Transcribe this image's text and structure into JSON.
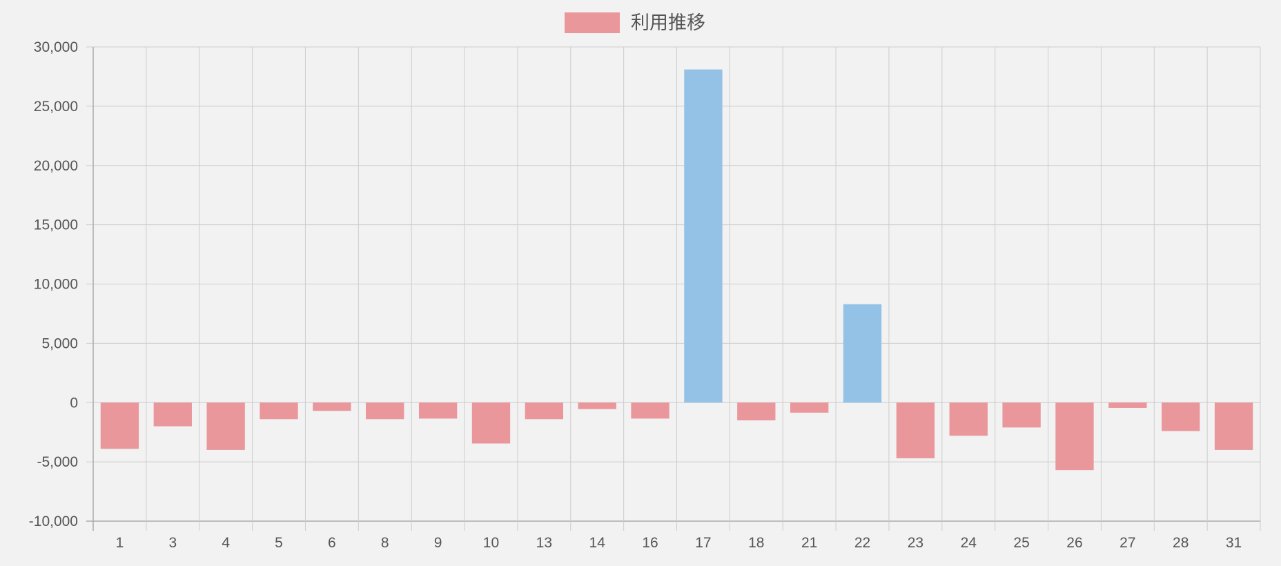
{
  "chart_data": {
    "type": "bar",
    "categories": [
      "1",
      "3",
      "4",
      "5",
      "6",
      "8",
      "9",
      "10",
      "13",
      "14",
      "16",
      "17",
      "18",
      "21",
      "22",
      "23",
      "24",
      "25",
      "26",
      "27",
      "28",
      "31"
    ],
    "series": [
      {
        "name": "利用推移",
        "values": [
          -3900,
          -2000,
          -4000,
          -1400,
          -700,
          -1400,
          -1350,
          -3450,
          -1400,
          -550,
          -1350,
          28100,
          -1500,
          -850,
          8300,
          -4700,
          -2800,
          -2100,
          -5700,
          -450,
          -2400,
          -4000
        ]
      }
    ],
    "ylim": [
      -10000,
      30000
    ],
    "yticks": [
      -10000,
      -5000,
      0,
      5000,
      10000,
      15000,
      20000,
      25000,
      30000
    ],
    "ytick_labels": [
      "-10,000",
      "-5,000",
      "0",
      "5,000",
      "10,000",
      "15,000",
      "20,000",
      "25,000",
      "30,000"
    ],
    "grid": true,
    "legend_position": "top",
    "colors": {
      "negative": "#ea979c",
      "positive": "#94c2e6"
    }
  }
}
